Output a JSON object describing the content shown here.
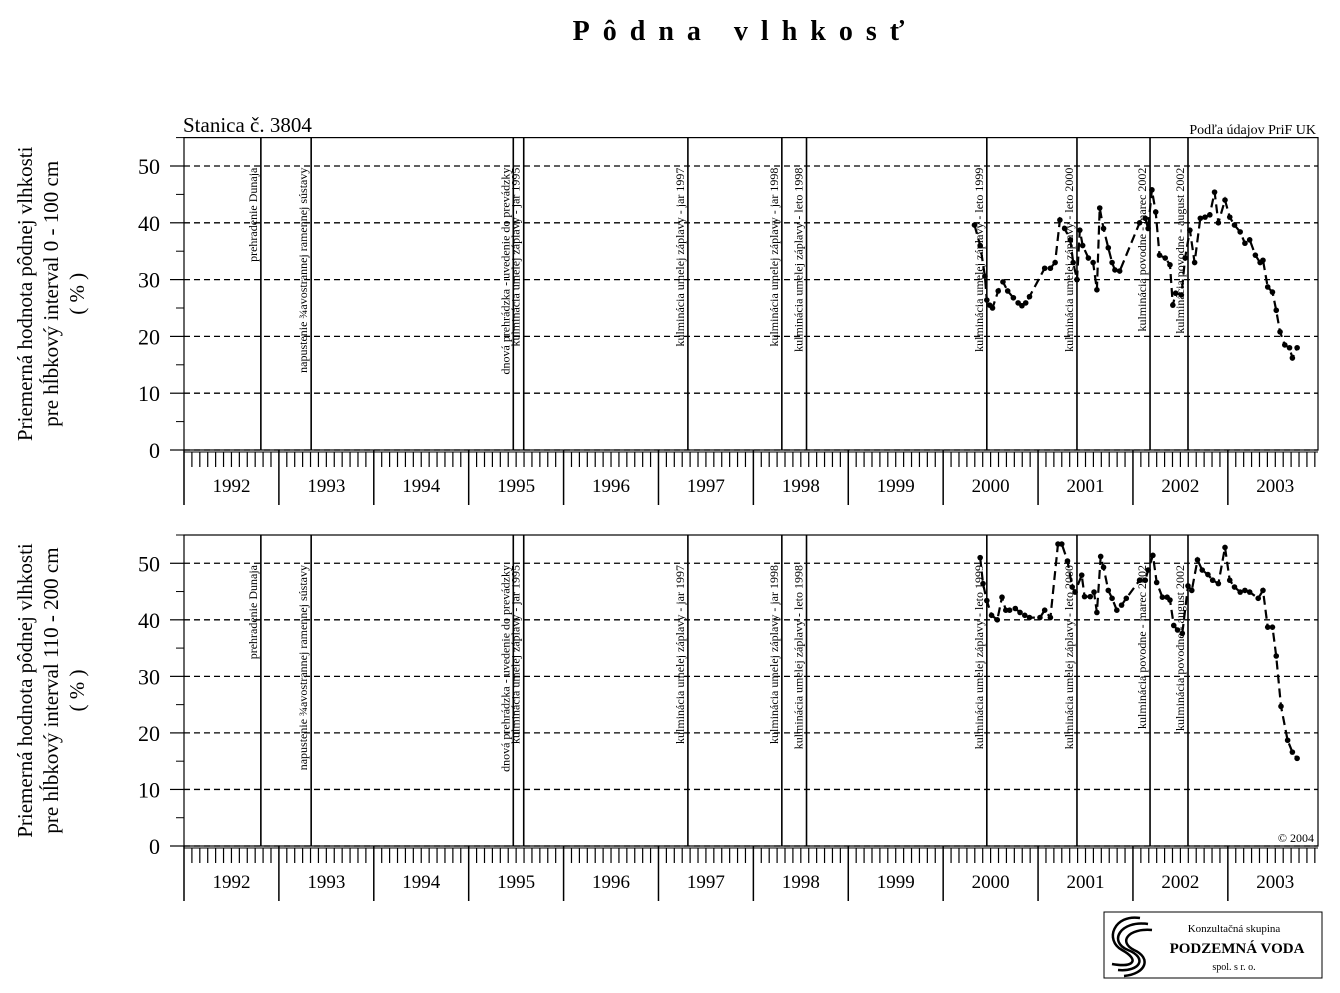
{
  "chart_data": [
    {
      "type": "line",
      "title": "Pôdna vlhkosť",
      "subtitle": "Stanica  č.  3804",
      "source": "Podľa údajov PriF UK",
      "ylabel": [
        "Priemerná hodnota pôdnej vlhkosti",
        "pre hĺbkový interval 0 - 100 cm",
        "( % )"
      ],
      "xlim": [
        1992.0,
        2003.95
      ],
      "xticks": [
        1992,
        1993,
        1994,
        1995,
        1996,
        1997,
        1998,
        1999,
        2000,
        2001,
        2002,
        2003
      ],
      "ylim": [
        0,
        55
      ],
      "yticks": [
        0,
        10,
        20,
        30,
        40,
        50
      ],
      "grid": true,
      "color": "#000000",
      "events": [
        {
          "x": 1992.81,
          "label": "prehradenie Dunaja"
        },
        {
          "x": 1993.34,
          "label": "napustenie ¾avostrannej ramennej sústavy"
        },
        {
          "x": 1995.47,
          "label": "dnová prehrádzka - uvedenie do prevádzky"
        },
        {
          "x": 1995.58,
          "label": "kulminácia umelej záplavy - jar 1995"
        },
        {
          "x": 1997.31,
          "label": "kulminácia umelej záplavy - jar 1997"
        },
        {
          "x": 1998.3,
          "label": "kulminácia umelej záplavy - jar 1998"
        },
        {
          "x": 1998.56,
          "label": "kulminácia umelej záplavy - leto 1998"
        },
        {
          "x": 2000.46,
          "label": "kulminácia umelej záplavy - leto 1999"
        },
        {
          "x": 2001.41,
          "label": "kulminácia umelej záplavy - leto 2000"
        },
        {
          "x": 2002.18,
          "label": "kulminácia povodne - marec 2002"
        },
        {
          "x": 2002.58,
          "label": "kulminácia povodne - august 2002"
        }
      ],
      "x": [
        2000.33,
        2000.39,
        2000.44,
        2000.46,
        2000.49,
        2000.52,
        2000.58,
        2000.63,
        2000.68,
        2000.74,
        2000.79,
        2000.83,
        2000.87,
        2000.91,
        2001.07,
        2001.13,
        2001.18,
        2001.23,
        2001.28,
        2001.34,
        2001.37,
        2001.41,
        2001.44,
        2001.47,
        2001.53,
        2001.58,
        2001.62,
        2001.65,
        2001.69,
        2001.74,
        2001.78,
        2001.81,
        2001.86,
        2002.07,
        2002.13,
        2002.16,
        2002.2,
        2002.24,
        2002.28,
        2002.34,
        2002.39,
        2002.42,
        2002.45,
        2002.51,
        2002.55,
        2002.6,
        2002.65,
        2002.71,
        2002.76,
        2002.81,
        2002.86,
        2002.9,
        2002.97,
        2003.02,
        2003.07,
        2003.13,
        2003.18,
        2003.23,
        2003.29,
        2003.34,
        2003.37,
        2003.42,
        2003.47,
        2003.51,
        2003.55,
        2003.6,
        2003.65,
        2003.68,
        2003.73
      ],
      "values": [
        39.6,
        36,
        30.6,
        26.4,
        25.5,
        25,
        28,
        29.6,
        28,
        26.8,
        25.9,
        25.4,
        25.9,
        27,
        32,
        32,
        33,
        40.5,
        39,
        37,
        33,
        30,
        38.7,
        36,
        33.8,
        33,
        28.2,
        42.6,
        39,
        35.6,
        33,
        31.7,
        31.5,
        40,
        40.8,
        39,
        45.8,
        41.9,
        34.3,
        33.8,
        32.6,
        25.5,
        27.6,
        27.3,
        33.8,
        38.7,
        33,
        40.8,
        41,
        41.4,
        45.4,
        40,
        44,
        41,
        39.6,
        38.4,
        36.4,
        37,
        34.3,
        33,
        33.4,
        28.7,
        27.8,
        24.6,
        20.8,
        18.5,
        18,
        16.2,
        18
      ]
    },
    {
      "type": "line",
      "annotation": "©  2004",
      "ylabel": [
        "Priemerná hodnota pôdnej vlhkosti",
        "pre hĺbkový interval 110 - 200 cm",
        "( % )"
      ],
      "xlim": [
        1992.0,
        2003.95
      ],
      "xticks": [
        1992,
        1993,
        1994,
        1995,
        1996,
        1997,
        1998,
        1999,
        2000,
        2001,
        2002,
        2003
      ],
      "ylim": [
        0,
        55
      ],
      "yticks": [
        0,
        10,
        20,
        30,
        40,
        50
      ],
      "grid": true,
      "color": "#000000",
      "events": [
        {
          "x": 1992.81,
          "label": "prehradenie Dunaja"
        },
        {
          "x": 1993.34,
          "label": "napustenie ¾avostrannej ramennej sústavy"
        },
        {
          "x": 1995.47,
          "label": "dnová prehrádzka - uvedenie do prevádzky"
        },
        {
          "x": 1995.58,
          "label": "kulminácia umelej záplavy - jar 1995"
        },
        {
          "x": 1997.31,
          "label": "kulminácia umelej záplavy - jar 1997"
        },
        {
          "x": 1998.3,
          "label": "kulminácia umelej záplavy - jar 1998"
        },
        {
          "x": 1998.56,
          "label": "kulminácia umelej záplavy - leto 1998"
        },
        {
          "x": 2000.46,
          "label": "kulminácia umelej záplavy - leto 1999"
        },
        {
          "x": 2001.41,
          "label": "kulminácia umelej záplavy - leto 2000"
        },
        {
          "x": 2002.18,
          "label": "kulminácia povodne - marec 2002"
        },
        {
          "x": 2002.58,
          "label": "kulminácia povodne - august 2002"
        }
      ],
      "x": [
        2000.39,
        2000.42,
        2000.46,
        2000.51,
        2000.57,
        2000.62,
        2000.66,
        2000.7,
        2000.76,
        2000.81,
        2000.86,
        2000.91,
        2001.02,
        2001.07,
        2001.13,
        2001.21,
        2001.25,
        2001.31,
        2001.36,
        2001.39,
        2001.46,
        2001.49,
        2001.55,
        2001.59,
        2001.62,
        2001.66,
        2001.69,
        2001.74,
        2001.78,
        2001.83,
        2001.88,
        2001.93,
        2002.07,
        2002.13,
        2002.16,
        2002.21,
        2002.25,
        2002.31,
        2002.36,
        2002.39,
        2002.43,
        2002.47,
        2002.52,
        2002.58,
        2002.62,
        2002.68,
        2002.73,
        2002.79,
        2002.84,
        2002.9,
        2002.97,
        2003.02,
        2003.07,
        2003.13,
        2003.18,
        2003.23,
        2003.32,
        2003.37,
        2003.42,
        2003.47,
        2003.51,
        2003.56,
        2003.63,
        2003.68,
        2003.73
      ],
      "values": [
        51,
        46.4,
        43.4,
        40.8,
        40,
        44,
        41.7,
        41.7,
        42,
        41.3,
        40.8,
        40.4,
        40.4,
        41.7,
        40.4,
        53.4,
        53.4,
        50.4,
        45.8,
        44.9,
        47.9,
        44.1,
        44.1,
        44.9,
        41.3,
        51.2,
        49.3,
        45.2,
        43.8,
        41.7,
        42.6,
        43.8,
        47,
        47,
        48.8,
        51.4,
        46.6,
        44,
        44,
        43.5,
        39,
        38.2,
        37.6,
        46,
        45.2,
        50.6,
        48.8,
        48,
        47,
        46.4,
        52.8,
        47,
        45.8,
        44.9,
        45.2,
        44.9,
        43.8,
        45.2,
        38.7,
        38.7,
        33.6,
        24.7,
        18.7,
        16.6,
        15.5
      ]
    }
  ],
  "logo": {
    "line1": "Konzultačná skupina",
    "line2": "PODZEMNÁ VODA",
    "line3": "spol.  s  r.  o."
  }
}
